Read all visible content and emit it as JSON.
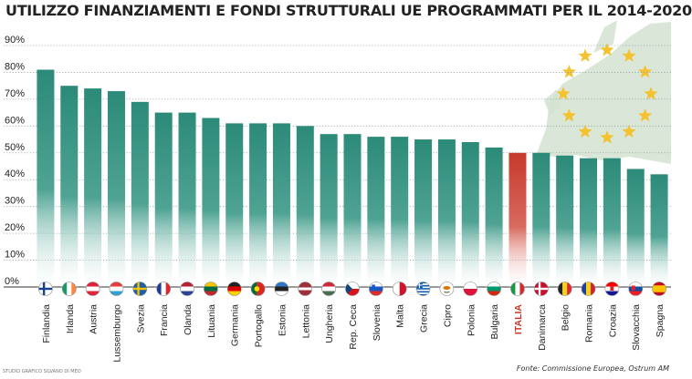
{
  "chart_data": {
    "type": "bar",
    "title": "UTILIZZO FINANZIAMENTI E FONDI STRUTTURALI UE PROGRAMMATI PER IL 2014-2020",
    "categories": [
      "Finlandia",
      "Irlanda",
      "Austria",
      "Lussemburgo",
      "Svezia",
      "Francia",
      "Olanda",
      "Lituania",
      "Germania",
      "Portogallo",
      "Estonia",
      "Lettonia",
      "Ungheria",
      "Rep. Ceca",
      "Slovenia",
      "Malta",
      "Grecia",
      "Cipro",
      "Polonia",
      "Bulgaria",
      "ITALIA",
      "Danimarca",
      "Belgio",
      "Romania",
      "Croazia",
      "Slovacchia",
      "Spagna"
    ],
    "values": [
      81,
      75,
      74,
      73,
      69,
      65,
      65,
      63,
      61,
      61,
      61,
      60,
      57,
      57,
      56,
      56,
      55,
      55,
      54,
      52,
      50,
      50,
      49,
      48,
      48,
      44,
      42
    ],
    "highlight": "ITALIA",
    "ylim": [
      0,
      90
    ],
    "yticks": [
      "0%",
      "10%",
      "20%",
      "30%",
      "40%",
      "50%",
      "60%",
      "70%",
      "80%",
      "90%"
    ],
    "grid": true,
    "colors": {
      "bar": "#2e8c7a",
      "highlight": "#c9382a",
      "grid": "#9aa3a8",
      "map_land": "#d4e2d0",
      "map_stars": "#f3c22e"
    },
    "flags": [
      "finland",
      "ireland",
      "austria",
      "luxembourg",
      "sweden",
      "france",
      "netherlands",
      "lithuania",
      "germany",
      "portugal",
      "estonia",
      "latvia",
      "hungary",
      "czechia",
      "slovenia",
      "malta",
      "greece",
      "cyprus",
      "poland",
      "bulgaria",
      "italy",
      "denmark",
      "belgium",
      "romania",
      "croatia",
      "slovakia",
      "spain"
    ]
  },
  "credit": "STUDIO GRAFICO SILVANO DI MEO",
  "source": "Fonte: Commissione Europea, Ostrum AM"
}
